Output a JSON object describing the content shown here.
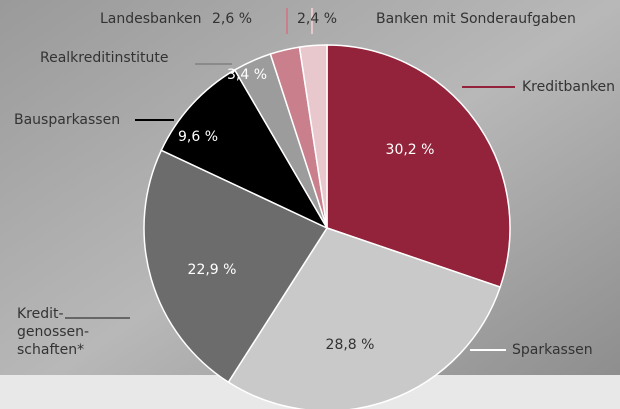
{
  "chart_data": {
    "type": "pie",
    "categories": [
      "Kreditbanken",
      "Sparkassen",
      "Kredit-\ngenossen-\nschaften*",
      "Bausparkassen",
      "Realkreditinstitute",
      "Landesbanken",
      "Banken mit Sonderaufgaben"
    ],
    "values": [
      30.2,
      28.8,
      22.9,
      9.6,
      3.4,
      2.6,
      2.4
    ],
    "value_labels": [
      "30,2 %",
      "28,8 %",
      "22,9 %",
      "9,6 %",
      "3,4 %",
      "2,6 %",
      "2,4 %"
    ],
    "colors": [
      "#93233a",
      "#c9c9c9",
      "#6c6c6c",
      "#000000",
      "#9c9c9c",
      "#c9808c",
      "#e9c8cd"
    ]
  }
}
